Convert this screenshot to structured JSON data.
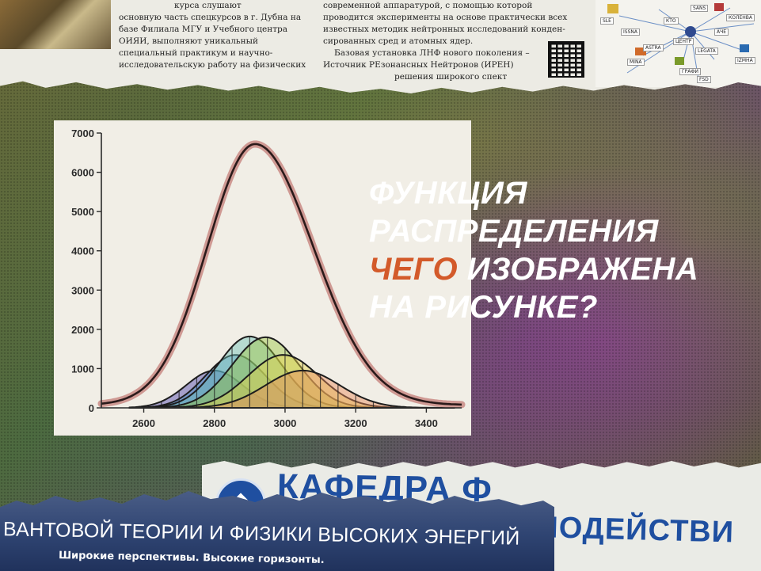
{
  "newspaper": {
    "left_column": [
      "курса слушают",
      "основную часть спецкурсов в г. Дубна на",
      "базе Филиала МГУ и Учебного центра",
      "ОИЯИ,        выполняют        уникальный",
      "специальный      практикум     и     научно-",
      "исследовательскую работу на физических"
    ],
    "right_column": [
      "современной аппаратурой, с помощью которой",
      "проводится эксперименты на основе практически всех",
      "известных методик нейтронных исследований конден-",
      "сированных сред и атомных ядер.",
      "Базовая установка ЛНФ нового поколения –",
      "Источник РЕзонансных Нейтронов (ИРЕН)",
      "решения широкого спект"
    ],
    "diagram_nodes": [
      "SLE",
      "КТО",
      "SANS",
      "КОЛЕНВА",
      "ISSNA",
      "АЧЕ",
      "ЦЕНТР",
      "ASTRA",
      "LEGATA",
      "IZMHA",
      "MINA",
      "ГРАФИ",
      "FSD"
    ]
  },
  "chart_data": {
    "type": "line",
    "x_ticks": [
      2600,
      2800,
      3000,
      3200,
      3400
    ],
    "y_ticks": [
      0,
      1000,
      2000,
      3000,
      4000,
      5000,
      6000,
      7000
    ],
    "xlim": [
      2480,
      3500
    ],
    "ylim": [
      0,
      7000
    ],
    "total": {
      "color": "#2a1a1a",
      "points_color": "#c98a84",
      "peak_x": 2915,
      "peak_y": 6650,
      "sigma_left": 135,
      "sigma_right": 165
    },
    "components": [
      {
        "center": 2800,
        "amplitude": 950,
        "sigma": 80,
        "color": "#4a3da8"
      },
      {
        "center": 2860,
        "amplitude": 1350,
        "sigma": 85,
        "color": "#3e8fc6"
      },
      {
        "center": 2900,
        "amplitude": 1820,
        "sigma": 90,
        "color": "#6fc2b8"
      },
      {
        "center": 2945,
        "amplitude": 1800,
        "sigma": 95,
        "color": "#9cc540"
      },
      {
        "center": 2995,
        "amplitude": 1350,
        "sigma": 100,
        "color": "#e6d24a"
      },
      {
        "center": 3050,
        "amplitude": 950,
        "sigma": 105,
        "color": "#e98a5a"
      }
    ]
  },
  "headline": {
    "line1": "ФУНКЦИЯ",
    "line2": "РАСПРЕДЕЛЕНИЯ",
    "line3_accent": "ЧЕГО",
    "line3_rest": " ИЗОБРАЖЕНА",
    "line4": "НА РИСУНКЕ?",
    "accent_color": "#d35a2a"
  },
  "department": {
    "line1": "КАФЕДРА Ф",
    "line2": "ЯДЕРНЫХ ВЗАИМОДЕЙСТВИ"
  },
  "mountain_banner": {
    "title": "ВАНТОВОЙ ТЕОРИИ И ФИЗИКИ ВЫСОКИХ ЭНЕРГИЙ",
    "subtitle": "Широкие перспективы. Высокие горизонты."
  }
}
